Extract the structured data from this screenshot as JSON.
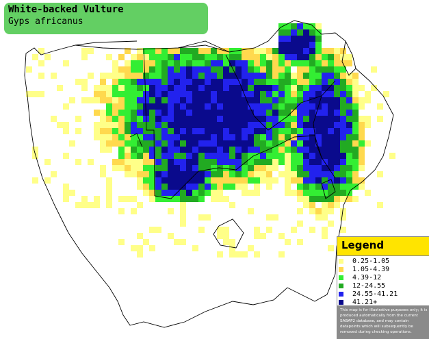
{
  "title": {
    "common_name": "White-backed Vulture",
    "scientific_name": "Gyps africanus"
  },
  "legend": {
    "heading": "Legend",
    "items": [
      {
        "label": "0.25-1.05",
        "color": "#ffff88"
      },
      {
        "label": "1.05-4.39",
        "color": "#ffd94e"
      },
      {
        "label": "4.39-12",
        "color": "#33ee33"
      },
      {
        "label": "12-24.55",
        "color": "#22aa22"
      },
      {
        "label": "24.55-41.21",
        "color": "#2222ee"
      },
      {
        "label": "41.21+",
        "color": "#0a0a8c"
      }
    ],
    "disclaimer": "This map is for illustrative purposes only; it is produced automatically from the current SABAP2 database, and may contain datapoints which will subsequently be removed during checking operations."
  },
  "colors": {
    "title_bg": "#63cf63",
    "legend_head_bg": "#ffe400",
    "disclaimer_bg": "#8a8a8a",
    "land": "#ffffff",
    "border": "#000000"
  }
}
